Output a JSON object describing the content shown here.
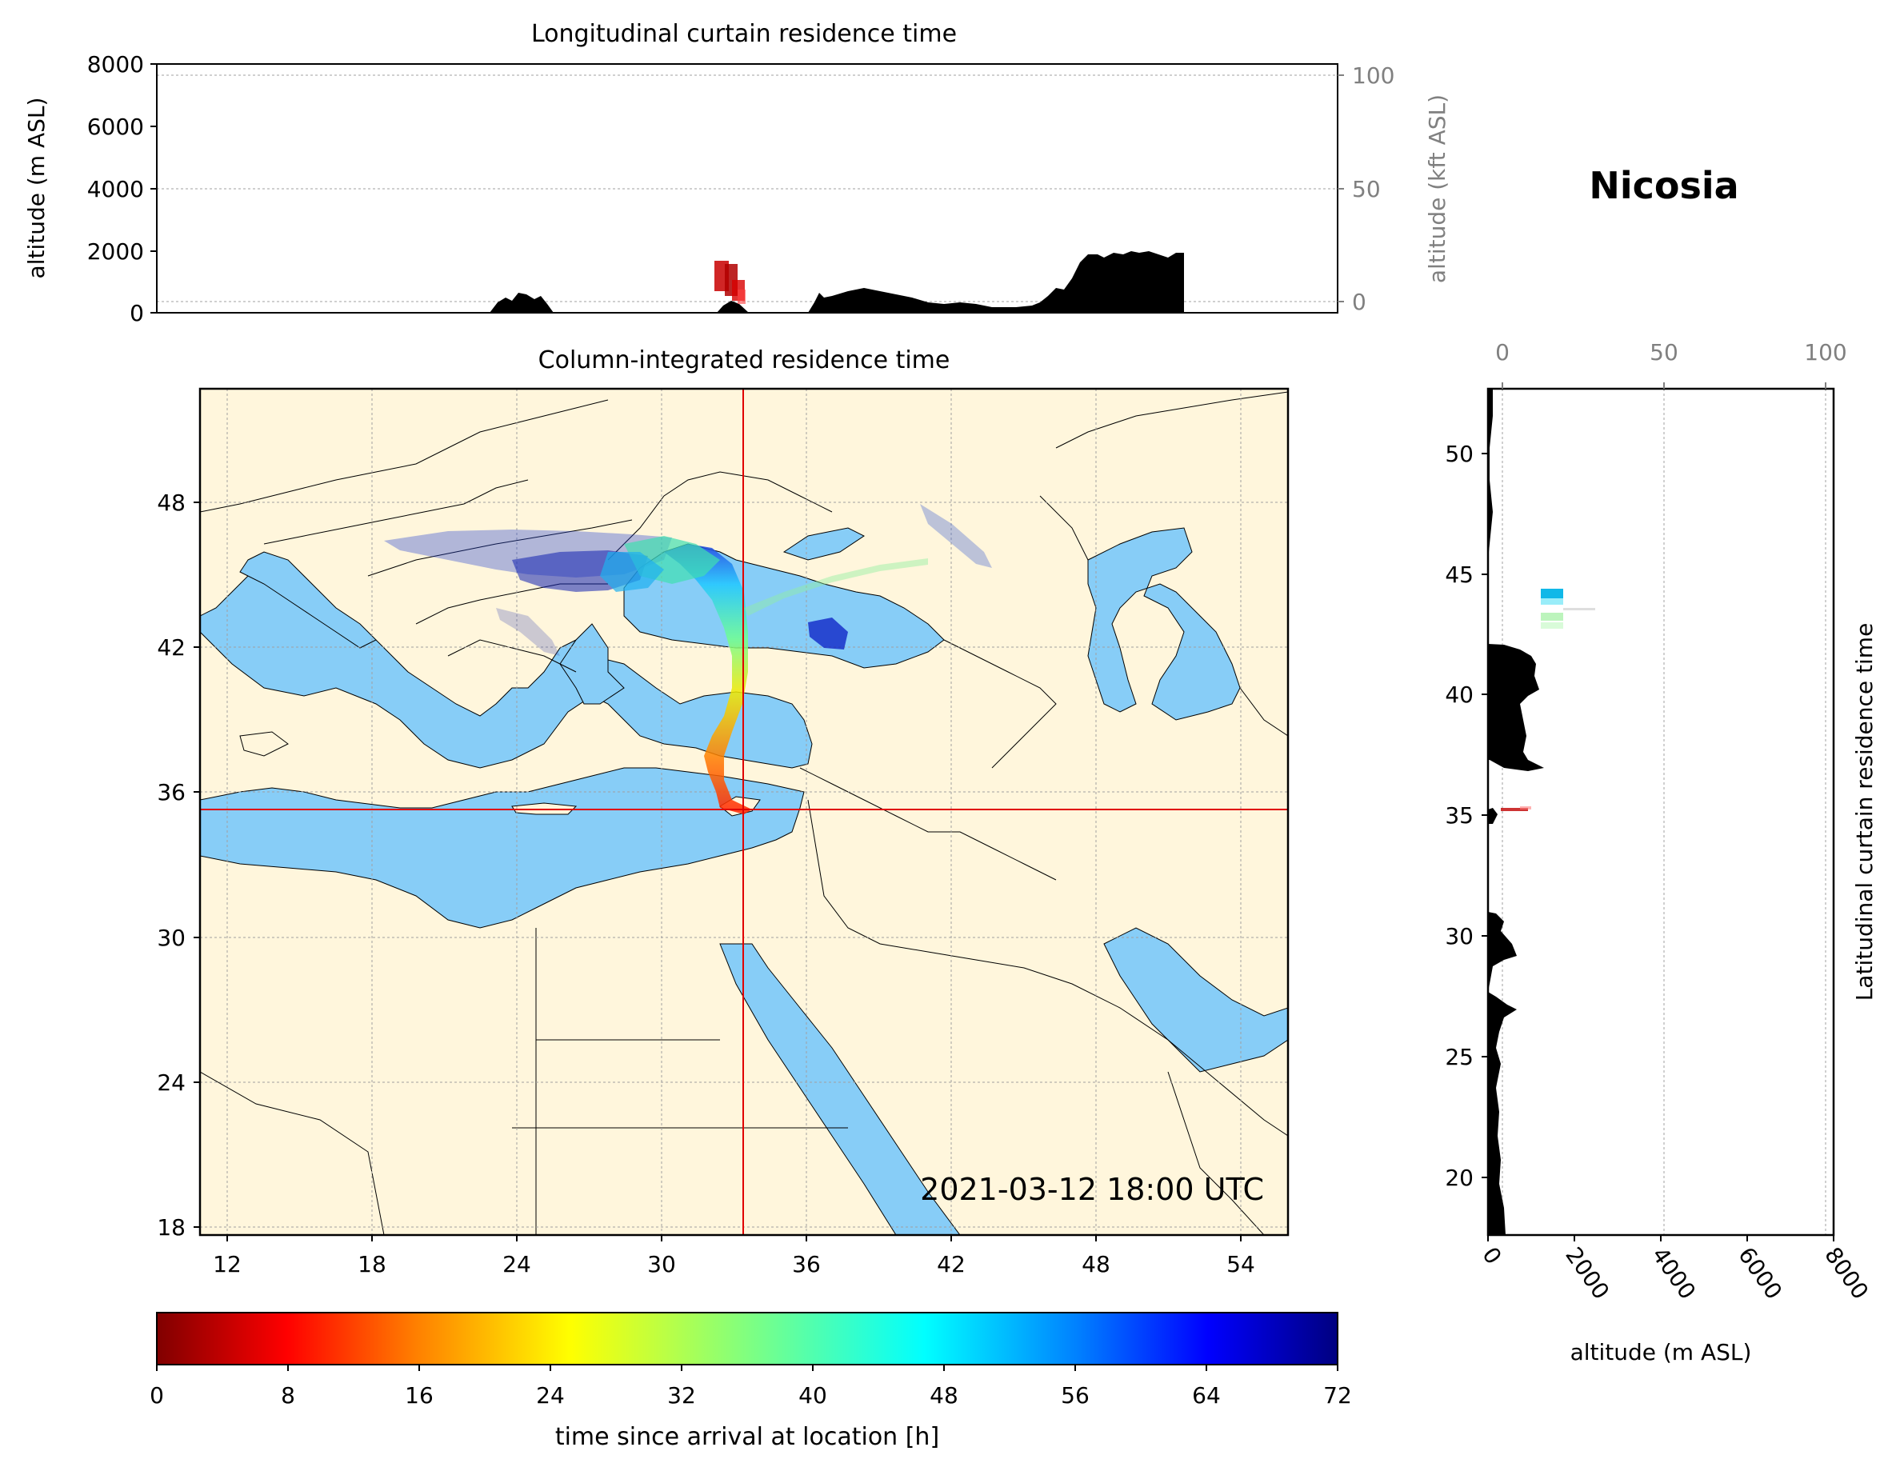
{
  "location_name": "Nicosia",
  "timestamp": "2021-03-12 18:00 UTC",
  "colors": {
    "land": "#fff6dc",
    "sea": "#87cdf7",
    "marker": "#e00000",
    "terrain": "#000000",
    "secondary_axis": "#808080"
  },
  "top_panel": {
    "title": "Longitudinal curtain residence time",
    "ylabel_left": "altitude (m ASL)",
    "ylabel_right": "altitude (kft ASL)",
    "yticks_left": [
      "0",
      "2000",
      "4000",
      "6000",
      "8000"
    ],
    "yticks_right": [
      "0",
      "50",
      "100"
    ],
    "ylim_m": [
      0,
      8000
    ]
  },
  "map_panel": {
    "title": "Column-integrated residence time",
    "xticks": [
      "12",
      "18",
      "24",
      "30",
      "36",
      "42",
      "48",
      "54"
    ],
    "yticks": [
      "18",
      "24",
      "30",
      "36",
      "42",
      "48"
    ],
    "lon_range": [
      11,
      56
    ],
    "lat_range": [
      18,
      53
    ],
    "location": {
      "lon": 33.4,
      "lat": 35.2
    }
  },
  "right_panel": {
    "ylabel": "Latitudinal curtain residence time",
    "xlabel": "altitude (m ASL)",
    "xticks_bottom": [
      "0",
      "2000",
      "4000",
      "6000",
      "8000"
    ],
    "xticks_top": [
      "0",
      "50",
      "100"
    ],
    "yticks": [
      "20",
      "25",
      "30",
      "35",
      "40",
      "45",
      "50"
    ]
  },
  "colorbar": {
    "label": "time since arrival at location [h]",
    "ticks": [
      "0",
      "8",
      "16",
      "24",
      "32",
      "40",
      "48",
      "56",
      "64",
      "72"
    ],
    "range": [
      0,
      72
    ],
    "colormap": "jet_r"
  }
}
